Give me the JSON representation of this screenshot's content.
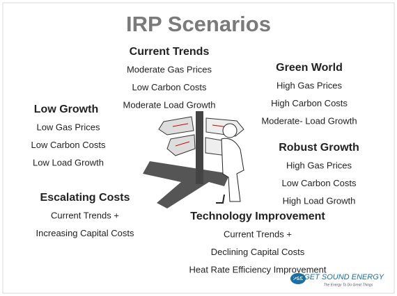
{
  "title": "IRP Scenarios",
  "scenarios": [
    {
      "name": "Current Trends",
      "lines": [
        "Moderate Gas Prices",
        "Low Carbon Costs",
        "Moderate Load Growth"
      ]
    },
    {
      "name": "Green World",
      "lines": [
        "High Gas Prices",
        "High Carbon Costs",
        "Moderate- Load Growth"
      ]
    },
    {
      "name": "Low Growth",
      "lines": [
        "Low Gas Prices",
        "Low Carbon Costs",
        "Low Load Growth"
      ]
    },
    {
      "name": "Robust Growth",
      "lines": [
        "High Gas Prices",
        "Low Carbon Costs",
        "High Load Growth"
      ]
    },
    {
      "name": "Escalating Costs",
      "lines": [
        "Current Trends +",
        "Increasing Capital Costs"
      ]
    },
    {
      "name": "Technology Improvement",
      "lines": [
        "Current Trends +",
        "Declining Capital Costs",
        "Heat Rate Efficiency Improvement"
      ]
    }
  ],
  "logo": {
    "mark": "PSE",
    "name": "PUGET SOUND ENERGY",
    "tagline": "The Energy To Do Great Things"
  }
}
